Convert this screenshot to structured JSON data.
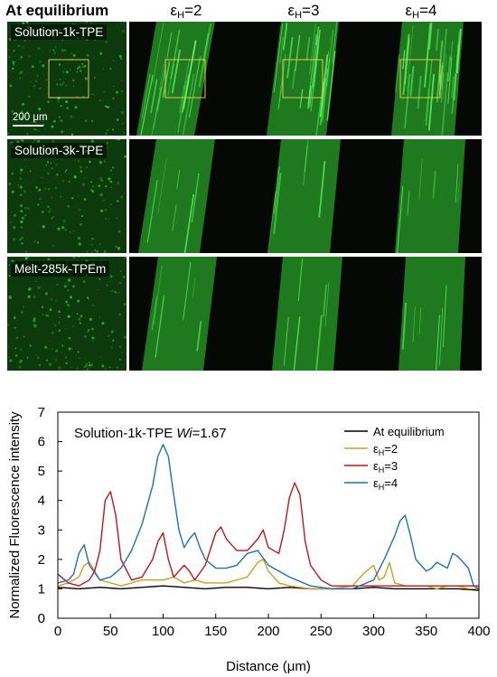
{
  "figure": {
    "header": {
      "equilibrium": "At equilibrium",
      "col_sym": "ε",
      "col_sub": "H",
      "cols": [
        "=2",
        "=3",
        "=4"
      ]
    },
    "rows": [
      "Solution-1k-TPE",
      "Solution-3k-TPE",
      "Melt-285k-TPEm"
    ],
    "scale_bar": "200 μm",
    "colors": {
      "equilibrium": "#000000",
      "eps2": "#C9A227",
      "eps3": "#C0161B",
      "eps4": "#1F6FC1",
      "fluorescence": "#33cc33",
      "roi_box": "#e6c84a"
    }
  },
  "chart_data": {
    "type": "line",
    "annotation": "Solution-1k-TPE",
    "annotation_italic": "Wi",
    "annotation_value": "=1.67",
    "xlabel": "Distance (μm)",
    "ylabel": "Normalized Fluorescence intensity",
    "xlim": [
      0,
      400
    ],
    "ylim": [
      0,
      7
    ],
    "xticks": [
      0,
      50,
      100,
      150,
      200,
      250,
      300,
      350,
      400
    ],
    "yticks": [
      0,
      1,
      2,
      3,
      4,
      5,
      6,
      7
    ],
    "legend_position": "top-right",
    "series": [
      {
        "name": "At equilibrium",
        "color": "#000000",
        "x": [
          0,
          20,
          40,
          60,
          80,
          100,
          120,
          140,
          160,
          180,
          200,
          220,
          240,
          260,
          280,
          300,
          320,
          340,
          360,
          380,
          400
        ],
        "y": [
          1.05,
          1.0,
          1.05,
          1.0,
          1.05,
          1.1,
          1.05,
          1.0,
          1.05,
          1.05,
          1.0,
          1.05,
          1.0,
          1.0,
          1.0,
          1.05,
          1.0,
          1.0,
          1.0,
          1.0,
          0.95
        ]
      },
      {
        "name": "=2",
        "color": "#C9A227",
        "x": [
          0,
          10,
          20,
          25,
          30,
          35,
          40,
          50,
          60,
          70,
          80,
          90,
          100,
          110,
          120,
          130,
          140,
          150,
          160,
          170,
          180,
          190,
          195,
          200,
          210,
          220,
          240,
          260,
          280,
          290,
          300,
          305,
          310,
          315,
          320,
          330,
          340,
          350,
          360,
          370,
          380,
          390,
          400
        ],
        "y": [
          1.1,
          1.2,
          1.4,
          1.8,
          1.9,
          1.6,
          1.3,
          1.2,
          1.1,
          1.2,
          1.3,
          1.3,
          1.3,
          1.4,
          1.2,
          1.3,
          1.2,
          1.2,
          1.2,
          1.3,
          1.4,
          1.9,
          2.0,
          1.6,
          1.2,
          1.1,
          1.0,
          1.0,
          1.1,
          1.5,
          1.8,
          1.3,
          1.4,
          1.9,
          1.2,
          1.1,
          1.1,
          1.1,
          1.0,
          1.1,
          1.1,
          1.0,
          1.0
        ]
      },
      {
        "name": "=3",
        "color": "#C0161B",
        "x": [
          0,
          10,
          20,
          30,
          35,
          40,
          45,
          50,
          55,
          60,
          70,
          80,
          90,
          95,
          100,
          105,
          110,
          120,
          125,
          130,
          140,
          150,
          155,
          160,
          170,
          180,
          190,
          195,
          200,
          210,
          215,
          220,
          225,
          230,
          235,
          240,
          250,
          260,
          280,
          300,
          320,
          340,
          360,
          380,
          400
        ],
        "y": [
          1.5,
          1.2,
          1.1,
          1.3,
          1.6,
          2.3,
          4.0,
          4.3,
          3.5,
          2.0,
          1.3,
          1.4,
          2.0,
          2.6,
          2.9,
          2.0,
          1.4,
          1.8,
          1.6,
          1.3,
          1.8,
          2.9,
          3.1,
          2.7,
          2.3,
          2.3,
          2.7,
          3.0,
          2.4,
          2.2,
          3.0,
          4.1,
          4.6,
          4.2,
          2.6,
          1.8,
          1.3,
          1.1,
          1.1,
          1.1,
          1.1,
          1.1,
          1.1,
          1.1,
          1.1
        ]
      },
      {
        "name": "=4",
        "color": "#1F6FC1",
        "x": [
          0,
          10,
          15,
          20,
          25,
          30,
          40,
          50,
          60,
          70,
          80,
          90,
          95,
          100,
          105,
          110,
          115,
          120,
          125,
          130,
          135,
          140,
          150,
          160,
          170,
          180,
          190,
          200,
          210,
          220,
          240,
          260,
          280,
          300,
          310,
          320,
          325,
          330,
          335,
          340,
          350,
          355,
          360,
          370,
          375,
          380,
          390,
          395,
          400
        ],
        "y": [
          1.2,
          1.3,
          1.5,
          2.2,
          2.5,
          1.8,
          1.3,
          1.4,
          1.7,
          2.3,
          3.2,
          4.5,
          5.5,
          5.9,
          5.5,
          4.2,
          3.0,
          2.4,
          2.7,
          2.9,
          2.4,
          2.0,
          1.7,
          1.7,
          1.8,
          2.2,
          2.3,
          1.8,
          1.6,
          1.4,
          1.1,
          1.0,
          1.0,
          1.3,
          2.0,
          2.8,
          3.3,
          3.5,
          2.8,
          2.0,
          1.6,
          1.7,
          1.9,
          1.7,
          2.2,
          2.1,
          1.7,
          1.1,
          1.0
        ]
      }
    ]
  }
}
